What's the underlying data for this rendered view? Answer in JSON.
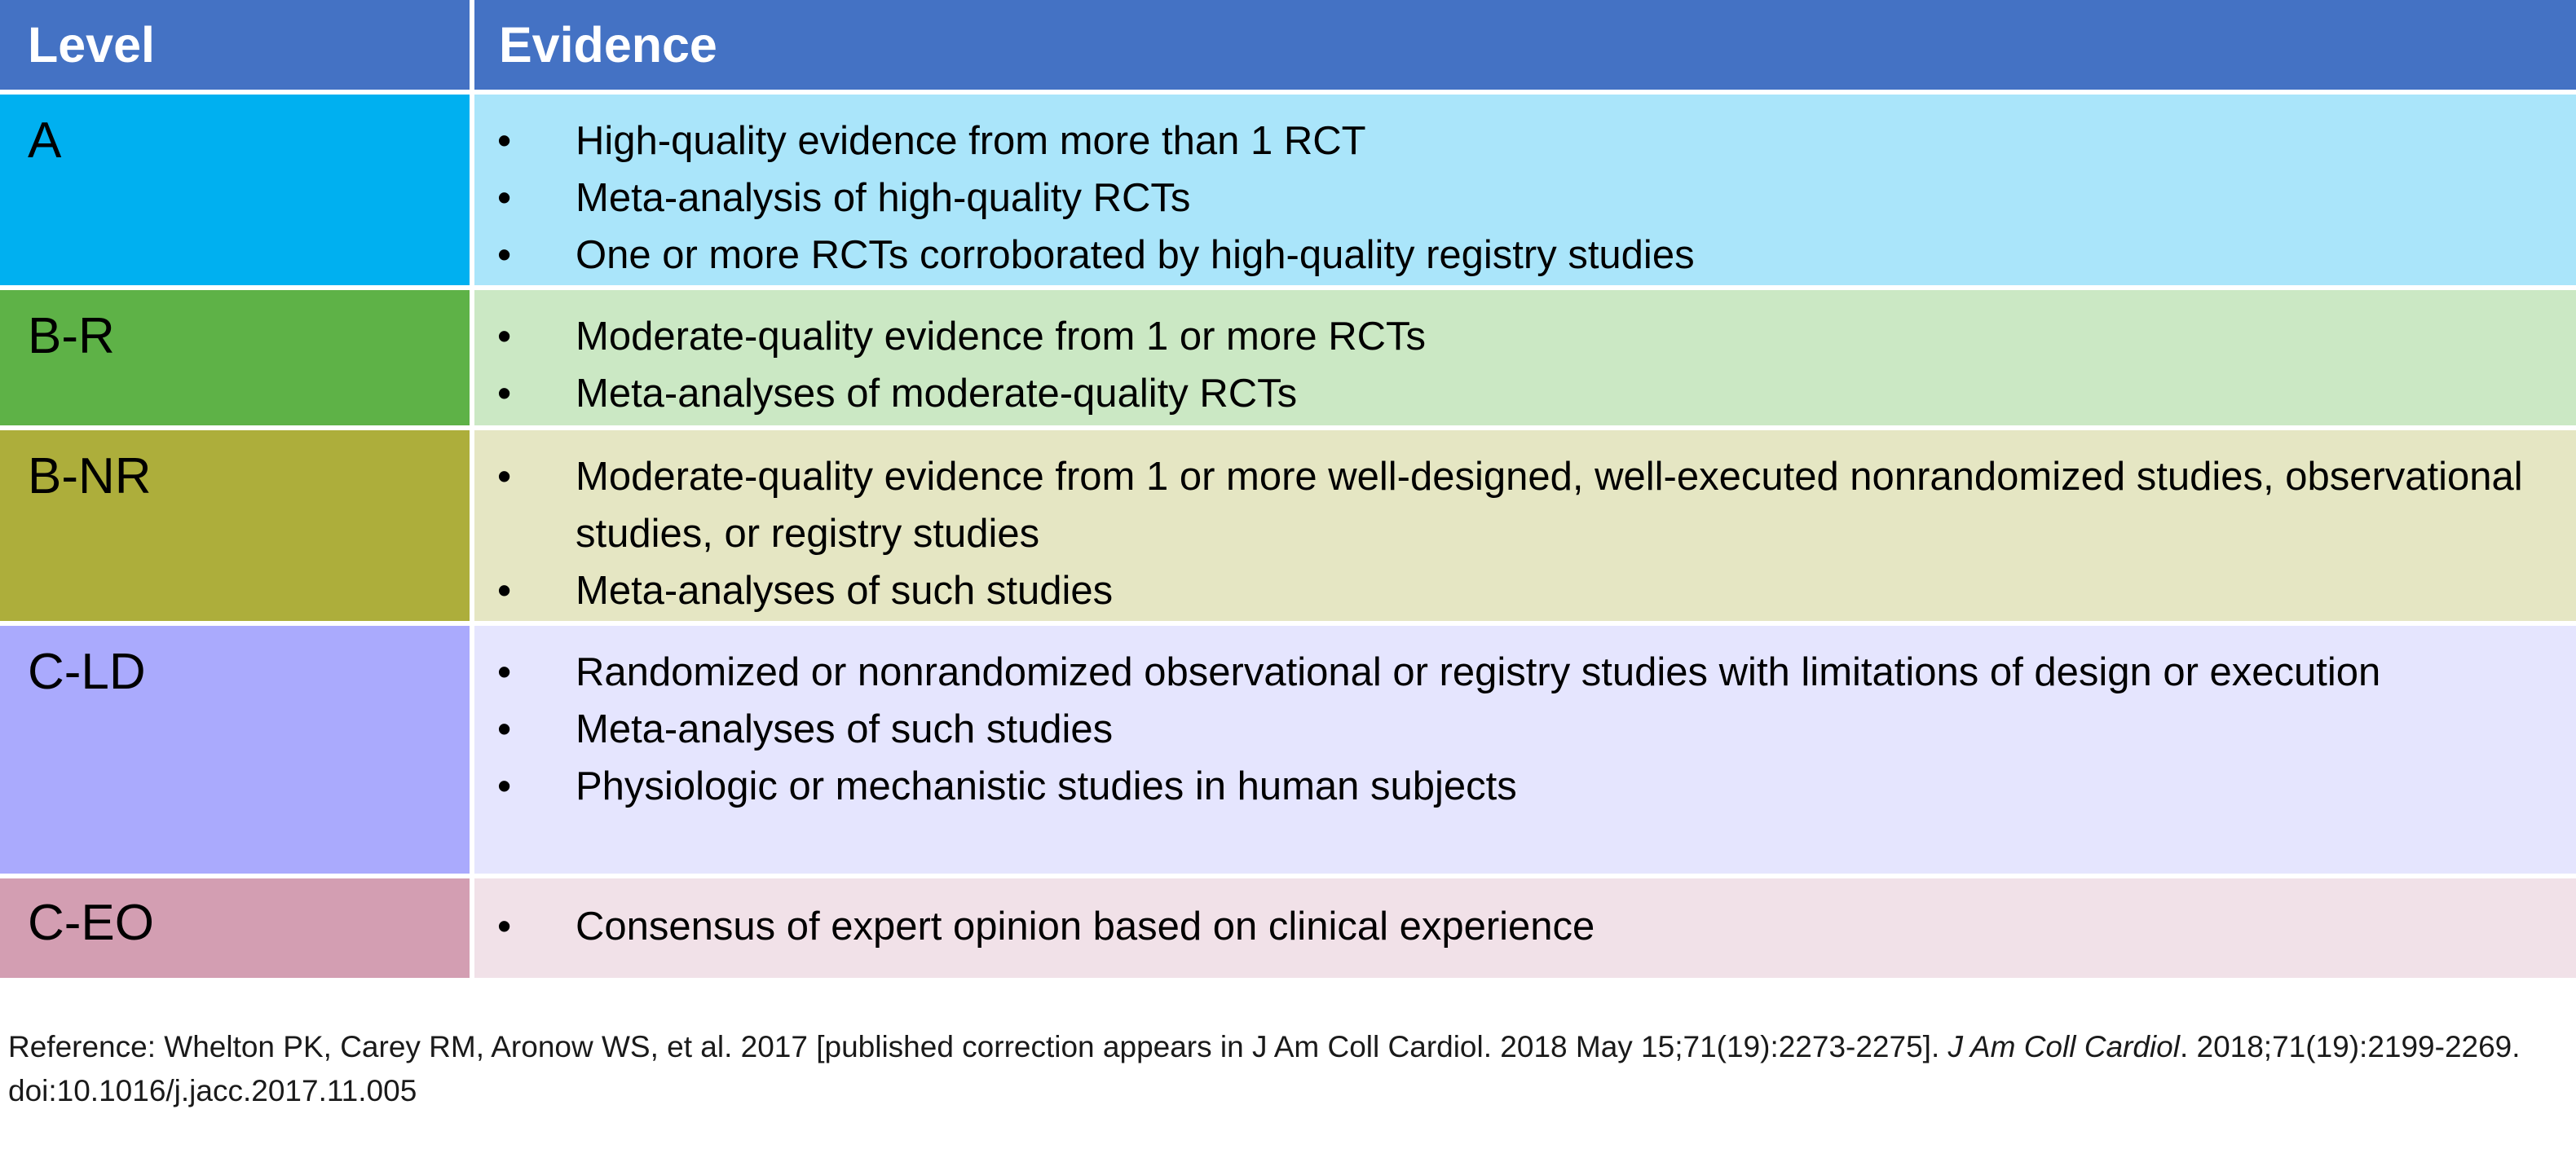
{
  "table": {
    "header": {
      "level_label": "Level",
      "evidence_label": "Evidence"
    },
    "rows": [
      {
        "level": "A",
        "level_color": "#00b0f0",
        "evidence_color": "#aae5fa",
        "items": [
          "High-quality evidence from more than 1 RCT",
          "Meta-analysis of high-quality RCTs",
          "One or more RCTs corroborated by high-quality registry studies"
        ]
      },
      {
        "level": "B-R",
        "level_color": "#5eb247",
        "evidence_color": "#cbe8c4",
        "items": [
          "Moderate-quality evidence from 1 or more RCTs",
          "Meta-analyses of moderate-quality RCTs"
        ]
      },
      {
        "level": "B-NR",
        "level_color": "#adae3b",
        "evidence_color": "#e5e6c3",
        "items": [
          "Moderate-quality evidence from 1 or more well-designed, well-executed nonrandomized studies, observational studies, or registry studies",
          "Meta-analyses of such studies"
        ]
      },
      {
        "level": "C-LD",
        "level_color": "#aaaafd",
        "evidence_color": "#e5e5fe",
        "items": [
          "Randomized or nonrandomized observational or registry studies with limitations of design or execution",
          "Meta-analyses of such studies",
          "Physiologic or mechanistic studies in human subjects"
        ]
      },
      {
        "level": "C-EO",
        "level_color": "#d39eb2",
        "evidence_color": "#f1e1e8",
        "items": [
          "Consensus of expert opinion based on clinical experience"
        ]
      }
    ],
    "bullet": "•",
    "header_color": "#4472c4"
  },
  "reference": {
    "prefix": "Reference: Whelton PK, Carey RM, Aronow WS, et al. 2017 [published correction appears in J Am Coll Cardiol. 2018 May 15;71(19):2273-2275]. ",
    "journal": "J Am Coll Cardiol",
    "suffix": ". 2018;71(19):2199-2269.  doi:10.1016/j.jacc.2017.11.005"
  }
}
